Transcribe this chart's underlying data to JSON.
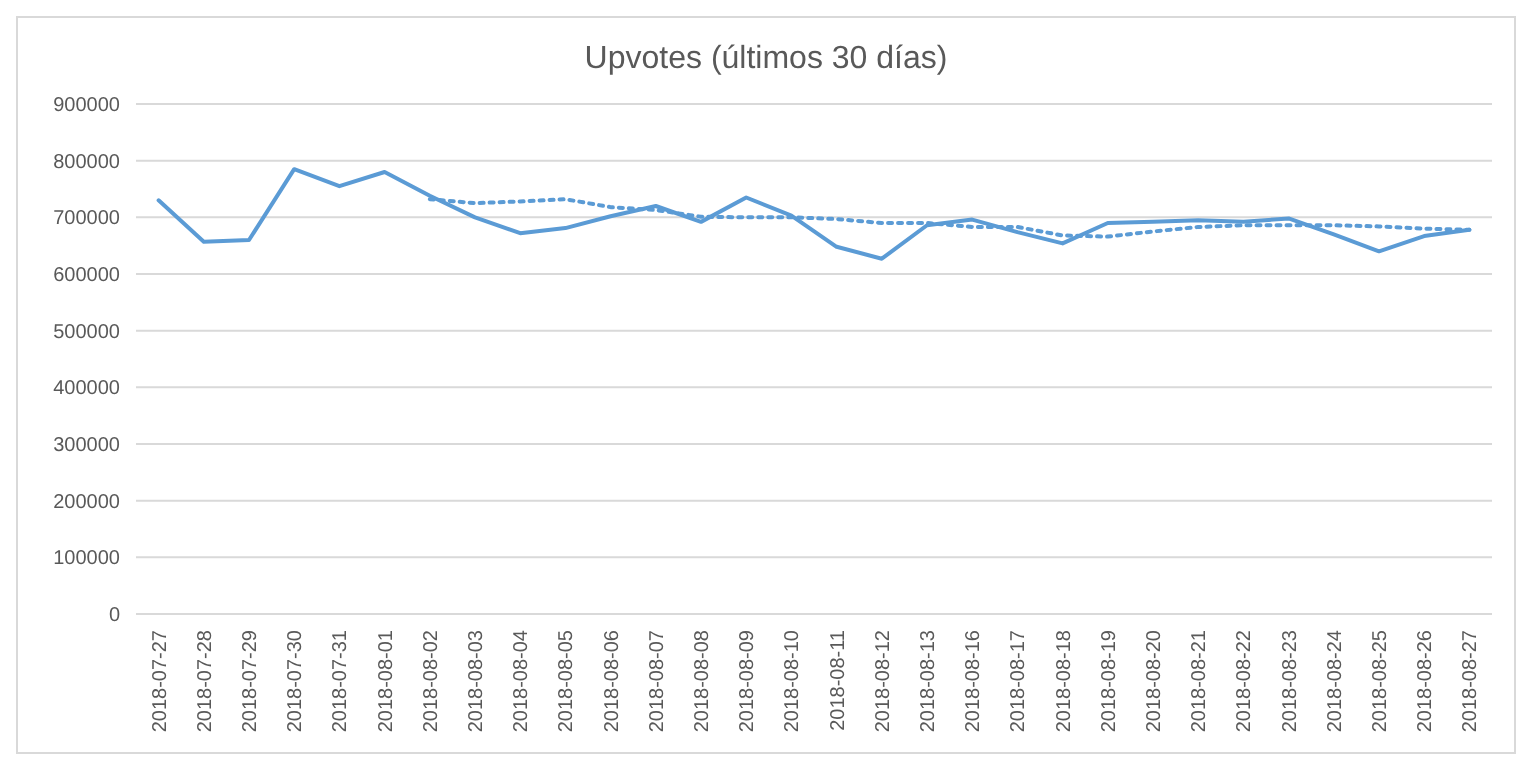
{
  "chart_data": {
    "type": "line",
    "title": "Upvotes (últimos 30 días)",
    "categories": [
      "2018-07-27",
      "2018-07-28",
      "2018-07-29",
      "2018-07-30",
      "2018-07-31",
      "2018-08-01",
      "2018-08-02",
      "2018-08-03",
      "2018-08-04",
      "2018-08-05",
      "2018-08-06",
      "2018-08-07",
      "2018-08-08",
      "2018-08-09",
      "2018-08-10",
      "2018-08-11",
      "2018-08-12",
      "2018-08-13",
      "2018-08-16",
      "2018-08-17",
      "2018-08-18",
      "2018-08-19",
      "2018-08-20",
      "2018-08-21",
      "2018-08-22",
      "2018-08-23",
      "2018-08-24",
      "2018-08-25",
      "2018-08-26",
      "2018-08-27"
    ],
    "series": [
      {
        "color": "#5b9bd5",
        "line_style": "solid",
        "values": [
          730000,
          657000,
          660000,
          785000,
          755000,
          780000,
          738000,
          700000,
          672000,
          681000,
          702000,
          720000,
          692000,
          735000,
          703000,
          648000,
          627000,
          686000,
          696000,
          674000,
          654000,
          690000,
          692000,
          695000,
          692000,
          698000,
          670000,
          640000,
          667000,
          678000
        ]
      },
      {
        "color": "#5b9bd5",
        "line_style": "dotted",
        "values": [
          null,
          null,
          null,
          null,
          null,
          null,
          732000,
          725000,
          728000,
          732000,
          718000,
          713000,
          701000,
          700000,
          700000,
          697000,
          690000,
          690000,
          683000,
          683000,
          668000,
          666000,
          675000,
          683000,
          686000,
          686000,
          686000,
          684000,
          680000,
          678000
        ]
      }
    ],
    "ylim": [
      0,
      900000
    ],
    "yticks": [
      0,
      100000,
      200000,
      300000,
      400000,
      500000,
      600000,
      700000,
      800000,
      900000
    ],
    "grid": "y"
  }
}
